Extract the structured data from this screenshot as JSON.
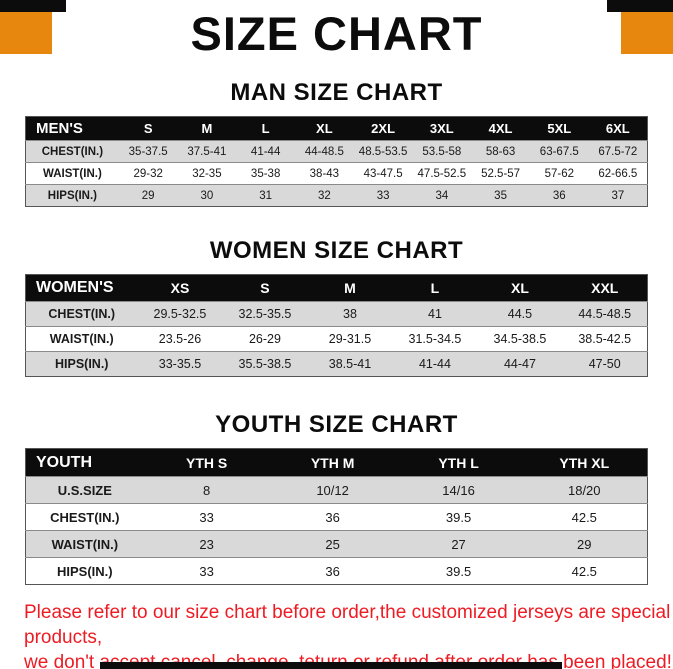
{
  "page": {
    "title": "SIZE CHART",
    "footer_line1": "Please refer to our size chart before order,the customized jerseys are special products,",
    "footer_line2": "we don't accept cancel, change, teturn or refund after order has been placed!"
  },
  "colors": {
    "accent_orange": "#e8870e",
    "header_black": "#0c0c0c",
    "row_gray": "#d9d9d9",
    "footer_red": "#ed1c24"
  },
  "sections": [
    {
      "heading": "MAN SIZE CHART",
      "table": {
        "header": [
          "MEN'S",
          "S",
          "M",
          "L",
          "XL",
          "2XL",
          "3XL",
          "4XL",
          "5XL",
          "6XL"
        ],
        "rows": [
          [
            "CHEST(IN.)",
            "35-37.5",
            "37.5-41",
            "41-44",
            "44-48.5",
            "48.5-53.5",
            "53.5-58",
            "58-63",
            "63-67.5",
            "67.5-72"
          ],
          [
            "WAIST(IN.)",
            "29-32",
            "32-35",
            "35-38",
            "38-43",
            "43-47.5",
            "47.5-52.5",
            "52.5-57",
            "57-62",
            "62-66.5"
          ],
          [
            "HIPS(IN.)",
            "29",
            "30",
            "31",
            "32",
            "33",
            "34",
            "35",
            "36",
            "37"
          ]
        ]
      }
    },
    {
      "heading": "WOMEN SIZE CHART",
      "table": {
        "header": [
          "WOMEN'S",
          "XS",
          "S",
          "M",
          "L",
          "XL",
          "XXL"
        ],
        "rows": [
          [
            "CHEST(IN.)",
            "29.5-32.5",
            "32.5-35.5",
            "38",
            "41",
            "44.5",
            "44.5-48.5"
          ],
          [
            "WAIST(IN.)",
            "23.5-26",
            "26-29",
            "29-31.5",
            "31.5-34.5",
            "34.5-38.5",
            "38.5-42.5"
          ],
          [
            "HIPS(IN.)",
            "33-35.5",
            "35.5-38.5",
            "38.5-41",
            "41-44",
            "44-47",
            "47-50"
          ]
        ]
      }
    },
    {
      "heading": "YOUTH SIZE CHART",
      "table": {
        "header": [
          "YOUTH",
          "YTH S",
          "YTH M",
          "YTH L",
          "YTH XL"
        ],
        "rows": [
          [
            "U.S.SIZE",
            "8",
            "10/12",
            "14/16",
            "18/20"
          ],
          [
            "CHEST(IN.)",
            "33",
            "36",
            "39.5",
            "42.5"
          ],
          [
            "WAIST(IN.)",
            "23",
            "25",
            "27",
            "29"
          ],
          [
            "HIPS(IN.)",
            "33",
            "36",
            "39.5",
            "42.5"
          ]
        ]
      }
    }
  ]
}
